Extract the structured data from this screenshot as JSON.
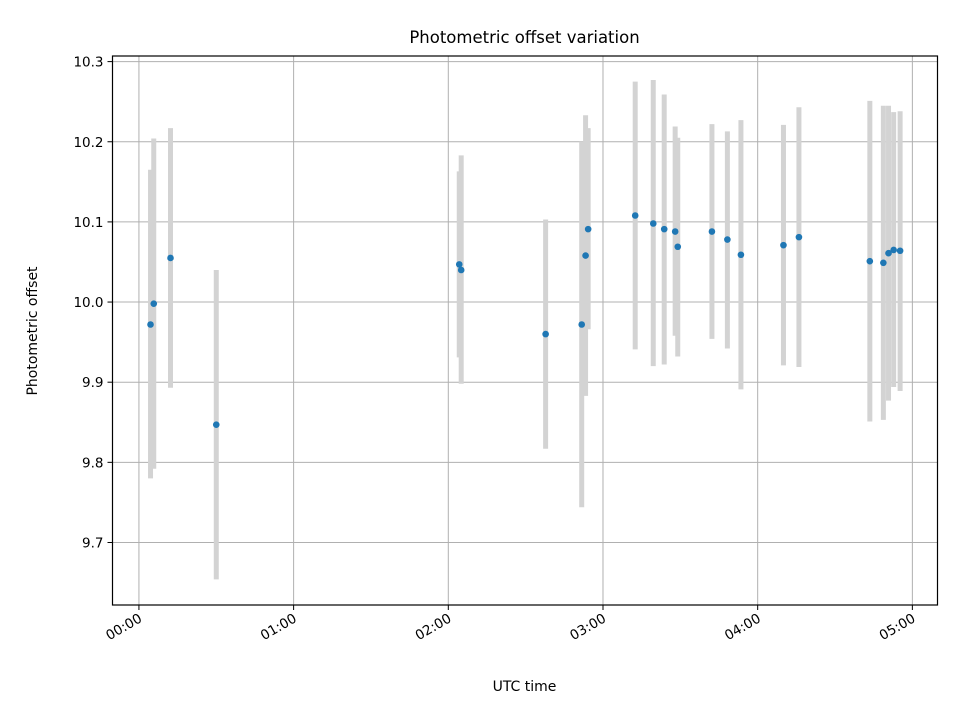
{
  "chart_data": {
    "type": "scatter",
    "title": "Photometric offset variation",
    "xlabel": "UTC time",
    "ylabel": "Photometric offset",
    "x_unit": "UTC time",
    "xlim": [
      "23:49:45",
      "05:09:45"
    ],
    "ylim": [
      9.622,
      10.307
    ],
    "x_ticks": [
      "00:00",
      "01:00",
      "02:00",
      "03:00",
      "04:00",
      "05:00"
    ],
    "y_ticks": [
      "9.7",
      "9.8",
      "9.9",
      "10.0",
      "10.1",
      "10.2",
      "10.3"
    ],
    "grid": true,
    "legend": "none",
    "marker_color": "#1f77b4",
    "errorbar_color": "#d3d3d3",
    "series": [
      {
        "points": [
          {
            "t": "00:04:30",
            "y": 9.972,
            "lo": 9.78,
            "hi": 10.165
          },
          {
            "t": "00:05:45",
            "y": 9.998,
            "lo": 9.792,
            "hi": 10.204
          },
          {
            "t": "00:12:15",
            "y": 10.055,
            "lo": 9.893,
            "hi": 10.217
          },
          {
            "t": "00:30:00",
            "y": 9.847,
            "lo": 9.654,
            "hi": 10.04
          },
          {
            "t": "02:04:15",
            "y": 10.047,
            "lo": 9.931,
            "hi": 10.163
          },
          {
            "t": "02:05:00",
            "y": 10.04,
            "lo": 9.898,
            "hi": 10.183
          },
          {
            "t": "02:37:45",
            "y": 9.96,
            "lo": 9.817,
            "hi": 10.103
          },
          {
            "t": "02:51:45",
            "y": 9.972,
            "lo": 9.744,
            "hi": 10.2
          },
          {
            "t": "02:53:15",
            "y": 10.058,
            "lo": 9.883,
            "hi": 10.233
          },
          {
            "t": "02:54:15",
            "y": 10.091,
            "lo": 9.966,
            "hi": 10.217
          },
          {
            "t": "03:12:30",
            "y": 10.108,
            "lo": 9.941,
            "hi": 10.275
          },
          {
            "t": "03:19:30",
            "y": 10.098,
            "lo": 9.92,
            "hi": 10.277
          },
          {
            "t": "03:23:45",
            "y": 10.091,
            "lo": 9.922,
            "hi": 10.259
          },
          {
            "t": "03:28:00",
            "y": 10.088,
            "lo": 9.958,
            "hi": 10.219
          },
          {
            "t": "03:29:00",
            "y": 10.069,
            "lo": 9.932,
            "hi": 10.205
          },
          {
            "t": "03:42:15",
            "y": 10.088,
            "lo": 9.954,
            "hi": 10.222
          },
          {
            "t": "03:48:15",
            "y": 10.078,
            "lo": 9.942,
            "hi": 10.213
          },
          {
            "t": "03:53:30",
            "y": 10.059,
            "lo": 9.891,
            "hi": 10.227
          },
          {
            "t": "04:10:00",
            "y": 10.071,
            "lo": 9.921,
            "hi": 10.221
          },
          {
            "t": "04:16:00",
            "y": 10.081,
            "lo": 9.919,
            "hi": 10.243
          },
          {
            "t": "04:43:30",
            "y": 10.051,
            "lo": 9.851,
            "hi": 10.251
          },
          {
            "t": "04:48:45",
            "y": 10.049,
            "lo": 9.853,
            "hi": 10.245
          },
          {
            "t": "04:50:45",
            "y": 10.061,
            "lo": 9.877,
            "hi": 10.245
          },
          {
            "t": "04:52:45",
            "y": 10.065,
            "lo": 9.894,
            "hi": 10.237
          },
          {
            "t": "04:55:15",
            "y": 10.064,
            "lo": 9.889,
            "hi": 10.238
          }
        ]
      }
    ]
  }
}
